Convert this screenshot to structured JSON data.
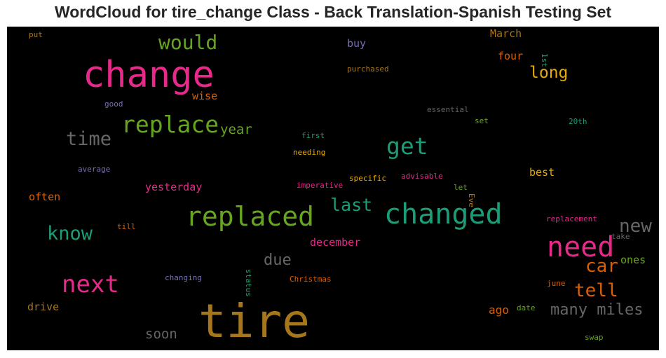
{
  "chart_data": {
    "type": "wordcloud",
    "title": "WordCloud for tire_change Class - Back Translation-Spanish Testing Set",
    "background": "#000000",
    "words": [
      {
        "text": "tire",
        "color": "#a6761d"
      },
      {
        "text": "change",
        "color": "#e7298a"
      },
      {
        "text": "changed",
        "color": "#1b9e77"
      },
      {
        "text": "replaced",
        "color": "#66a61e"
      },
      {
        "text": "replace",
        "color": "#66a61e"
      },
      {
        "text": "need",
        "color": "#e7298a"
      },
      {
        "text": "next",
        "color": "#e7298a"
      },
      {
        "text": "would",
        "color": "#66a61e"
      },
      {
        "text": "get",
        "color": "#1b9e77"
      },
      {
        "text": "know",
        "color": "#1b9e77"
      },
      {
        "text": "time",
        "color": "#666666"
      },
      {
        "text": "last",
        "color": "#1b9e77"
      },
      {
        "text": "new",
        "color": "#666666"
      },
      {
        "text": "car",
        "color": "#d95f02"
      },
      {
        "text": "tell",
        "color": "#d95f02"
      },
      {
        "text": "long",
        "color": "#e6ab02"
      },
      {
        "text": "many miles",
        "color": "#666666"
      },
      {
        "text": "due",
        "color": "#666666"
      },
      {
        "text": "year",
        "color": "#66a61e"
      },
      {
        "text": "soon",
        "color": "#666666"
      },
      {
        "text": "ago",
        "color": "#d95f02"
      },
      {
        "text": "yesterday",
        "color": "#e7298a"
      },
      {
        "text": "december",
        "color": "#e7298a"
      },
      {
        "text": "often",
        "color": "#d95f02"
      },
      {
        "text": "drive",
        "color": "#a6761d"
      },
      {
        "text": "wise",
        "color": "#d95f02"
      },
      {
        "text": "four",
        "color": "#d95f02"
      },
      {
        "text": "March",
        "color": "#a6761d"
      },
      {
        "text": "buy",
        "color": "#7570b3"
      },
      {
        "text": "best",
        "color": "#e6ab02"
      },
      {
        "text": "ones",
        "color": "#66a61e"
      },
      {
        "text": "purchased",
        "color": "#a6761d"
      },
      {
        "text": "essential",
        "color": "#666666"
      },
      {
        "text": "first",
        "color": "#1b9e77"
      },
      {
        "text": "needing",
        "color": "#e6ab02"
      },
      {
        "text": "specific",
        "color": "#e6ab02"
      },
      {
        "text": "advisable",
        "color": "#e7298a"
      },
      {
        "text": "imperative",
        "color": "#e7298a"
      },
      {
        "text": "average",
        "color": "#7570b3"
      },
      {
        "text": "good",
        "color": "#7570b3"
      },
      {
        "text": "put",
        "color": "#a6761d"
      },
      {
        "text": "set",
        "color": "#66a61e"
      },
      {
        "text": "20th",
        "color": "#1b9e77"
      },
      {
        "text": "1st",
        "color": "#1b9e77"
      },
      {
        "text": "let",
        "color": "#66a61e"
      },
      {
        "text": "Eve",
        "color": "#a6761d"
      },
      {
        "text": "till",
        "color": "#d95f02"
      },
      {
        "text": "replacement",
        "color": "#e7298a"
      },
      {
        "text": "take",
        "color": "#666666"
      },
      {
        "text": "changing",
        "color": "#7570b3"
      },
      {
        "text": "status",
        "color": "#1b9e77"
      },
      {
        "text": "Christmas",
        "color": "#d95f02"
      },
      {
        "text": "june",
        "color": "#d95f02"
      },
      {
        "text": "date",
        "color": "#66a61e"
      },
      {
        "text": "swap",
        "color": "#66a61e"
      }
    ]
  }
}
